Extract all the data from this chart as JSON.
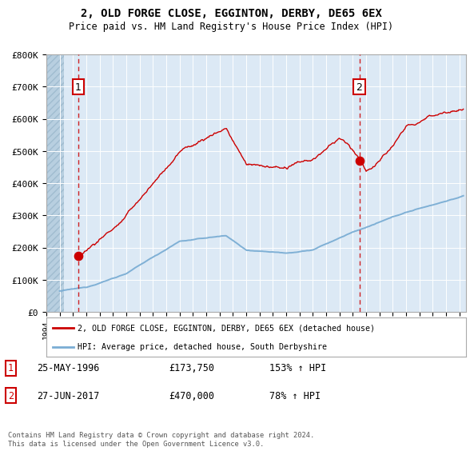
{
  "title": "2, OLD FORGE CLOSE, EGGINTON, DERBY, DE65 6EX",
  "subtitle": "Price paid vs. HM Land Registry's House Price Index (HPI)",
  "ylim": [
    0,
    800000
  ],
  "yticks": [
    0,
    100000,
    200000,
    300000,
    400000,
    500000,
    600000,
    700000,
    800000
  ],
  "ytick_labels": [
    "£0",
    "£100K",
    "£200K",
    "£300K",
    "£400K",
    "£500K",
    "£600K",
    "£700K",
    "£800K"
  ],
  "xlim_start": 1994.0,
  "xlim_end": 2025.5,
  "sale1_date": 1996.4,
  "sale1_price": 173750,
  "sale1_label": "1",
  "sale2_date": 2017.49,
  "sale2_price": 470000,
  "sale2_label": "2",
  "property_color": "#cc0000",
  "hpi_color": "#7aadd4",
  "legend_property": "2, OLD FORGE CLOSE, EGGINTON, DERBY, DE65 6EX (detached house)",
  "legend_hpi": "HPI: Average price, detached house, South Derbyshire",
  "footnote": "Contains HM Land Registry data © Crown copyright and database right 2024.\nThis data is licensed under the Open Government Licence v3.0.",
  "table_row1_label": "1",
  "table_row1_date": "25-MAY-1996",
  "table_row1_price": "£173,750",
  "table_row1_hpi": "153% ↑ HPI",
  "table_row2_label": "2",
  "table_row2_date": "27-JUN-2017",
  "table_row2_price": "£470,000",
  "table_row2_hpi": "78% ↑ HPI",
  "bg_color": "#dce9f5",
  "hatch_end": 1995.3
}
